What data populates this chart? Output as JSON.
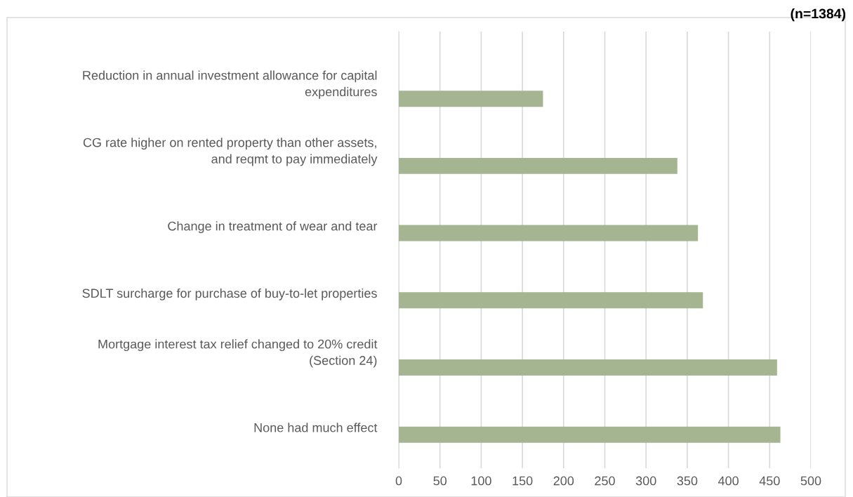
{
  "chart_data": {
    "type": "bar",
    "orientation": "horizontal",
    "title": "(n=1384)",
    "categories": [
      "Reduction in annual investment allowance for capital\nexpenditures",
      "CG rate higher on rented property than other assets,\nand reqmt to pay immediately",
      "Change in treatment of wear and tear",
      "SDLT surcharge for purchase of buy-to-let properties",
      "Mortgage interest tax relief changed to 20% credit\n(Section 24)",
      "None had much effect"
    ],
    "values": [
      175,
      338,
      363,
      369,
      459,
      463
    ],
    "color": "#a5b491",
    "xlim": [
      0,
      500
    ],
    "xticks": [
      0,
      50,
      100,
      150,
      200,
      250,
      300,
      350,
      400,
      450,
      500
    ],
    "grid": "x",
    "legend": false
  }
}
